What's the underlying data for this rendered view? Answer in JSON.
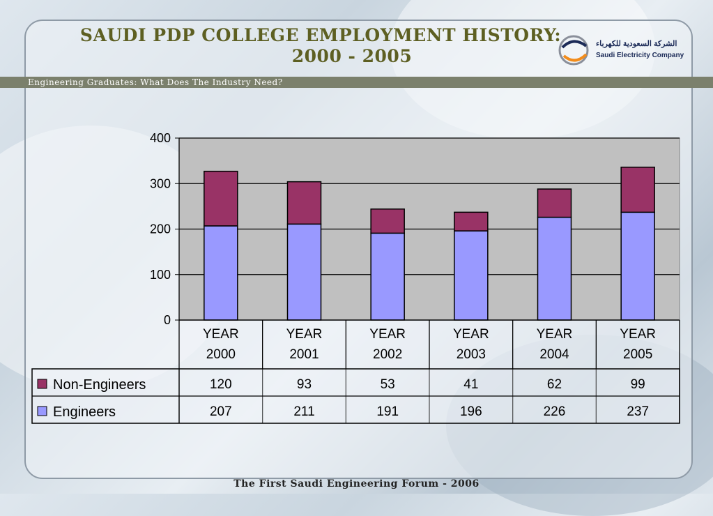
{
  "slide": {
    "title_line1": "SAUDI PDP COLLEGE EMPLOYMENT HISTORY:",
    "title_line2": "2000 - 2005",
    "subtitle": "Engineering Graduates: What Does The Industry Need?",
    "footer": "The First Saudi Engineering Forum - 2006",
    "logo_arabic": "الشركة السعودية للكهرباء",
    "logo_english": "Saudi Electricity Company"
  },
  "colors": {
    "engineers": "#9999ff",
    "non_engineers": "#993366",
    "plot_bg": "#c0c0c0",
    "title": "#5d5f22"
  },
  "chart_data": {
    "type": "bar",
    "stacked": true,
    "categories": [
      [
        "YEAR",
        "2000"
      ],
      [
        "YEAR",
        "2001"
      ],
      [
        "YEAR",
        "2002"
      ],
      [
        "YEAR",
        "2003"
      ],
      [
        "YEAR",
        "2004"
      ],
      [
        "YEAR",
        "2005"
      ]
    ],
    "series": [
      {
        "name": "Engineers",
        "values": [
          207,
          211,
          191,
          196,
          226,
          237
        ],
        "color": "#9999ff"
      },
      {
        "name": "Non-Engineers",
        "values": [
          120,
          93,
          53,
          41,
          62,
          99
        ],
        "color": "#993366"
      }
    ],
    "table_rows": [
      {
        "name": "Non-Engineers",
        "values": [
          "120",
          "93",
          "53",
          "41",
          "62",
          "99"
        ]
      },
      {
        "name": "Engineers",
        "values": [
          "207",
          "211",
          "191",
          "196",
          "226",
          "237"
        ]
      }
    ],
    "ylim": [
      0,
      400
    ],
    "yticks": [
      0,
      100,
      200,
      300,
      400
    ],
    "grid": true,
    "legend": "data-table"
  }
}
